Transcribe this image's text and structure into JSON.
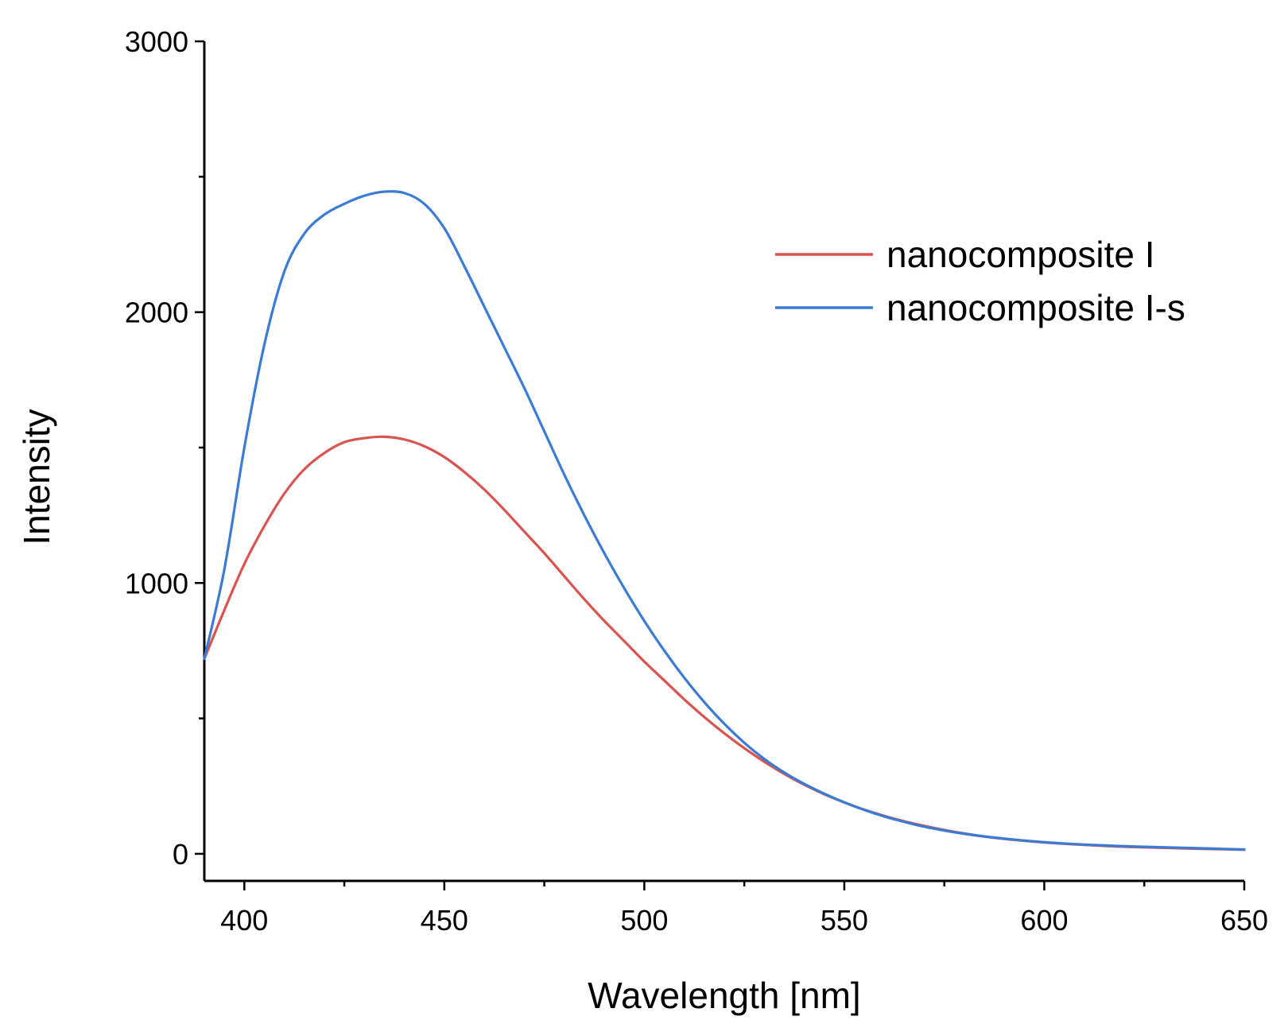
{
  "chart_data": {
    "type": "line",
    "title": "",
    "xlabel": "Wavelength [nm]",
    "ylabel": "Intensity",
    "xlim": [
      390,
      650
    ],
    "ylim": [
      -100,
      3000
    ],
    "x_ticks": [
      400,
      450,
      500,
      550,
      600,
      650
    ],
    "x_tick_labels": [
      "400",
      "450",
      "500",
      "550",
      "600",
      "650"
    ],
    "x_minor_ticks": [
      425,
      475,
      525,
      575,
      625
    ],
    "y_ticks": [
      0,
      1000,
      2000,
      3000
    ],
    "y_tick_labels": [
      "0",
      "1000",
      "2000",
      "3000"
    ],
    "y_minor_ticks": [
      500,
      1500,
      2500
    ],
    "grid": false,
    "legend_position": "top-right",
    "x": [
      390,
      395,
      400,
      405,
      410,
      415,
      420,
      425,
      430,
      435,
      440,
      445,
      450,
      455,
      460,
      465,
      470,
      475,
      480,
      485,
      490,
      495,
      500,
      505,
      510,
      515,
      520,
      525,
      530,
      535,
      540,
      545,
      550,
      555,
      560,
      565,
      570,
      575,
      580,
      585,
      590,
      595,
      600,
      605,
      610,
      615,
      620,
      625,
      630,
      635,
      640,
      645,
      650
    ],
    "series": [
      {
        "name": "nanocomposite I",
        "color": "#d9534f",
        "values": [
          720,
          900,
          1070,
          1210,
          1330,
          1420,
          1480,
          1520,
          1535,
          1540,
          1530,
          1505,
          1465,
          1410,
          1345,
          1270,
          1190,
          1110,
          1025,
          940,
          860,
          785,
          710,
          640,
          570,
          505,
          445,
          390,
          340,
          295,
          255,
          220,
          190,
          163,
          140,
          120,
          103,
          88,
          75,
          64,
          55,
          48,
          42,
          37,
          33,
          29,
          26,
          24,
          22,
          20,
          18,
          17,
          15
        ]
      },
      {
        "name": "nanocomposite I-s",
        "color": "#3a7bd5",
        "values": [
          720,
          1050,
          1500,
          1880,
          2150,
          2290,
          2360,
          2400,
          2430,
          2445,
          2440,
          2400,
          2310,
          2170,
          2020,
          1870,
          1720,
          1560,
          1400,
          1250,
          1110,
          980,
          860,
          750,
          650,
          560,
          480,
          410,
          350,
          300,
          258,
          222,
          190,
          162,
          138,
          118,
          100,
          86,
          74,
          64,
          56,
          49,
          43,
          38,
          34,
          31,
          28,
          26,
          24,
          22,
          20,
          18,
          16
        ]
      }
    ]
  }
}
